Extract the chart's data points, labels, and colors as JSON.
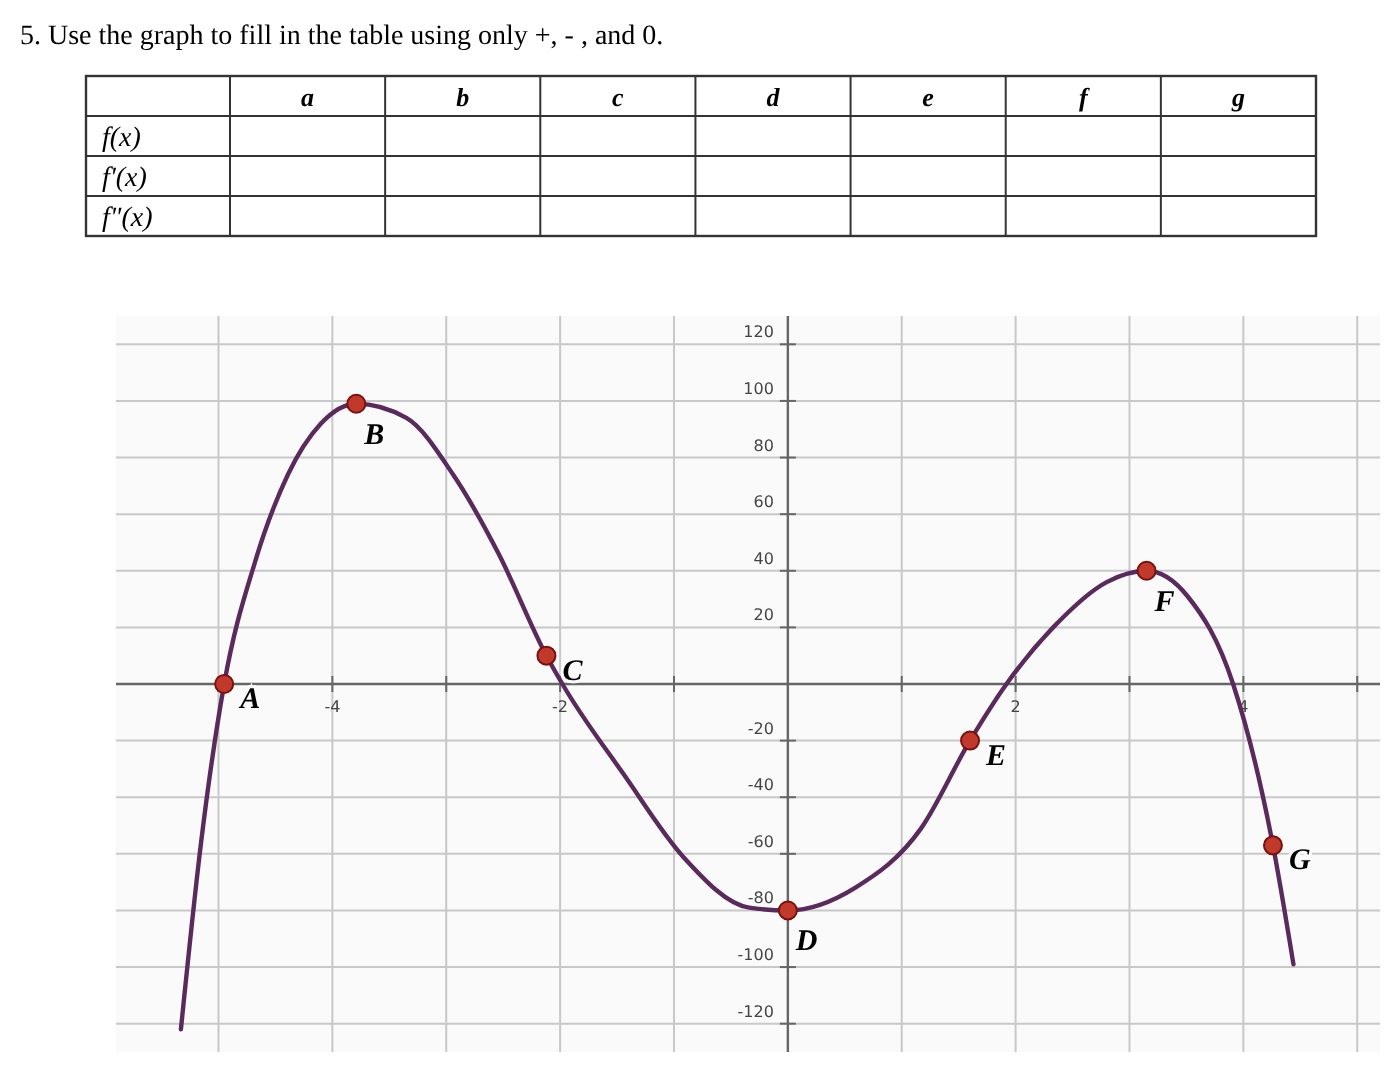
{
  "chart_data": [
    {
      "type": "other",
      "title": "5. Use the graph to fill in the table using only +, - , and 0.",
      "categories": [
        "a",
        "b",
        "c",
        "d",
        "e",
        "f",
        "g"
      ],
      "y_categories": [
        "f(x)",
        "f'(x)",
        "f\"(x)"
      ]
    },
    {
      "type": "line",
      "xlim": [
        -5.9,
        5.2
      ],
      "ylim": [
        -130,
        130
      ],
      "xticks": [
        {
          "value": -5,
          "label": null
        },
        -4,
        {
          "value": -3,
          "label": null
        },
        -2,
        {
          "value": -1,
          "label": null
        },
        {
          "value": 1,
          "label": null
        },
        2,
        {
          "value": 3,
          "label": null
        },
        4,
        {
          "value": 5,
          "label": null
        }
      ],
      "yticks": [
        -120,
        -100,
        -80,
        -60,
        -40,
        -20,
        20,
        40,
        60,
        80,
        100,
        120
      ],
      "grid": true,
      "series": [
        {
          "color": "#5a2a5c",
          "marker": "none",
          "x": [
            -5.33,
            -5.15,
            -4.95,
            -4.68,
            -4.39,
            -4.1,
            -3.79,
            -3.35,
            -2.94,
            -2.54,
            -2.12,
            -1.98,
            -1.44,
            -0.92,
            -0.34,
            0,
            0.59,
            1.17,
            1.6,
            1.92,
            2.33,
            2.8,
            3.15,
            3.51,
            3.91,
            4.26,
            4.44
          ],
          "values": [
            -122,
            -55,
            0,
            43,
            74,
            92,
            99,
            94,
            74,
            46,
            10,
            0,
            -32,
            -61,
            -79,
            -80,
            -72,
            -51,
            -20,
            0,
            20,
            36,
            40,
            31,
            0,
            -57,
            -99
          ]
        },
        {
          "type": "scatter",
          "color": "#c0392b",
          "marker": "circle",
          "x": [
            -4.95,
            -3.79,
            -2.12,
            0,
            1.6,
            3.15,
            4.26
          ],
          "values": [
            0,
            99,
            10,
            -80,
            -20,
            40,
            -57
          ]
        }
      ],
      "annotations": [
        {
          "text": "A",
          "x": -4.95,
          "y": 0
        },
        {
          "text": "B",
          "x": -3.79,
          "y": 99
        },
        {
          "text": "C",
          "x": -2.12,
          "y": 10
        },
        {
          "text": "D",
          "x": 0,
          "y": -80
        },
        {
          "text": "E",
          "x": 1.6,
          "y": -20
        },
        {
          "text": "F",
          "x": 3.15,
          "y": 40
        },
        {
          "text": "G",
          "x": 4.26,
          "y": -57
        }
      ]
    }
  ]
}
